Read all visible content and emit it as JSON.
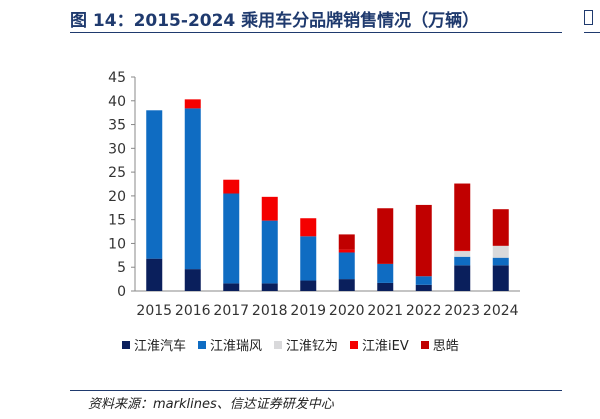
{
  "header": {
    "title": "图 14：2015-2024 乘用车分品牌销售情况（万辆）"
  },
  "footer": {
    "source": "资料来源：marklines、信达证券研发中心"
  },
  "colors": {
    "jianghuai_auto": "#0a1f5c",
    "jianghuai_ruifeng": "#0f6cc2",
    "jianghuai_yiwei": "#d9d9db",
    "jianghuai_iev": "#f40000",
    "sihao": "#c00000",
    "axis": "#888888",
    "tick_text": "#333333"
  },
  "chart_data": {
    "type": "bar",
    "stacked": true,
    "categories": [
      "2015",
      "2016",
      "2017",
      "2018",
      "2019",
      "2020",
      "2021",
      "2022",
      "2023",
      "2024"
    ],
    "ylim": [
      0,
      45
    ],
    "yticks": [
      0,
      5,
      10,
      15,
      20,
      25,
      30,
      35,
      40,
      45
    ],
    "grid": false,
    "legend_position": "bottom",
    "title": "",
    "xlabel": "",
    "ylabel": "",
    "series": [
      {
        "name": "江淮汽车",
        "color": "#0a1f5c",
        "values": [
          6.8,
          4.6,
          1.6,
          1.6,
          2.2,
          2.5,
          1.7,
          1.3,
          5.4,
          5.4
        ]
      },
      {
        "name": "江淮瑞风",
        "color": "#0f6cc2",
        "values": [
          31.2,
          33.8,
          18.9,
          13.2,
          9.3,
          5.6,
          4.0,
          1.8,
          1.8,
          1.6
        ]
      },
      {
        "name": "江淮钇为",
        "color": "#d9d9db",
        "values": [
          0,
          0,
          0,
          0,
          0,
          0,
          0,
          0,
          1.2,
          2.5
        ]
      },
      {
        "name": "江淮iEV",
        "color": "#f40000",
        "values": [
          0,
          1.9,
          2.9,
          5.0,
          3.8,
          0.6,
          0,
          0,
          0.2,
          0
        ]
      },
      {
        "name": "思皓",
        "color": "#c00000",
        "values": [
          0,
          0,
          0,
          0,
          0,
          3.2,
          11.7,
          15.0,
          14.0,
          7.7
        ]
      }
    ]
  }
}
